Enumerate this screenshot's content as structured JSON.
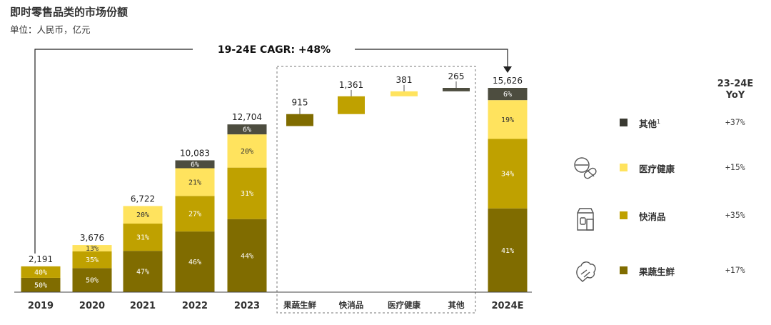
{
  "title": "即时零售品类的市场份额",
  "subtitle": "单位：人民币，亿元",
  "cagr_label": "19-24E CAGR: +48%",
  "colors": {
    "fresh": "#806c00",
    "fmcg": "#bfa100",
    "health": "#ffe35e",
    "other": "#4d4d3f",
    "gridline": "#444444"
  },
  "chart_data": {
    "type": "bar",
    "stacked": true,
    "categories": [
      "2019",
      "2020",
      "2021",
      "2022",
      "2023"
    ],
    "totals": [
      2191,
      3676,
      6722,
      10083,
      12704
    ],
    "total_labels": [
      "2,191",
      "3,676",
      "6,722",
      "10,083",
      "12,704"
    ],
    "series": [
      {
        "key": "fresh",
        "name": "果蔬生鲜",
        "values_pct": [
          50,
          50,
          47,
          46,
          44
        ]
      },
      {
        "key": "fmcg",
        "name": "快消品",
        "values_pct": [
          40,
          35,
          31,
          27,
          31
        ]
      },
      {
        "key": "health",
        "name": "医疗健康",
        "values_pct": [
          0,
          13,
          20,
          21,
          20
        ]
      },
      {
        "key": "other",
        "name": "其他",
        "values_pct": [
          0,
          0,
          0,
          6,
          6
        ]
      }
    ],
    "waterfall": {
      "categories": [
        "果蔬生鲜",
        "快消品",
        "医疗健康",
        "其他"
      ],
      "keys": [
        "fresh",
        "fmcg",
        "health",
        "other"
      ],
      "values": [
        915,
        1361,
        381,
        265
      ],
      "value_labels": [
        "915",
        "1,361",
        "381",
        "265"
      ]
    },
    "final": {
      "category": "2024E",
      "total": 15626,
      "total_label": "15,626",
      "values_pct": {
        "fresh": 41,
        "fmcg": 34,
        "health": 19,
        "other": 6
      }
    }
  },
  "legend": {
    "header": [
      "23-24E",
      "YoY"
    ],
    "items": [
      {
        "key": "other",
        "label": "其他",
        "sup": "1",
        "yoy": "+37%",
        "icon": ""
      },
      {
        "key": "health",
        "label": "医疗健康",
        "sup": "",
        "yoy": "+15%",
        "icon": "pills-icon"
      },
      {
        "key": "fmcg",
        "label": "快消品",
        "sup": "",
        "yoy": "+35%",
        "icon": "grocery-package-icon"
      },
      {
        "key": "fresh",
        "label": "果蔬生鲜",
        "sup": "",
        "yoy": "+17%",
        "icon": "vegetable-icon"
      }
    ]
  }
}
